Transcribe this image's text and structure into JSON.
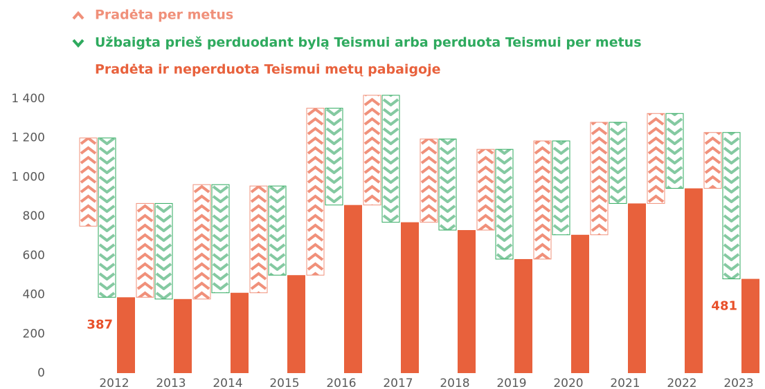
{
  "chart_data": {
    "type": "waterfall",
    "categories": [
      "2012",
      "2013",
      "2014",
      "2015",
      "2016",
      "2017",
      "2018",
      "2019",
      "2020",
      "2021",
      "2022",
      "2023"
    ],
    "series": [
      {
        "name": "Pradėta per metus",
        "color": "#f0907a",
        "role": "increase",
        "values": [
          450,
          479,
          584,
          545,
          852,
          560,
          425,
          412,
          603,
          574,
          459,
          285
        ]
      },
      {
        "name": "Užbaigta prieš perduodant bylą Teismui arba perduota Teismui per metus",
        "color": "#2eaa5e",
        "role": "decrease",
        "values": [
          813,
          488,
          552,
          455,
          494,
          648,
          465,
          560,
          479,
          414,
          382,
          747
        ]
      },
      {
        "name": "Pradėta ir neperduota Teismui metų pabaigoje",
        "color": "#e8613c",
        "role": "total",
        "values": [
          387,
          378,
          410,
          500,
          858,
          770,
          730,
          582,
          706,
          866,
          943,
          481
        ],
        "value_labels": [
          "387",
          null,
          null,
          null,
          null,
          null,
          null,
          null,
          null,
          null,
          null,
          "481"
        ]
      }
    ],
    "ylim": [
      0,
      1400
    ],
    "yticks": [
      0,
      200,
      400,
      600,
      800,
      {
        "value": 1000,
        "label": "1 000"
      },
      {
        "value": 1200,
        "label": "1 200"
      },
      {
        "value": 1400,
        "label": "1 400"
      }
    ],
    "legend": "top-left",
    "grid": false
  }
}
